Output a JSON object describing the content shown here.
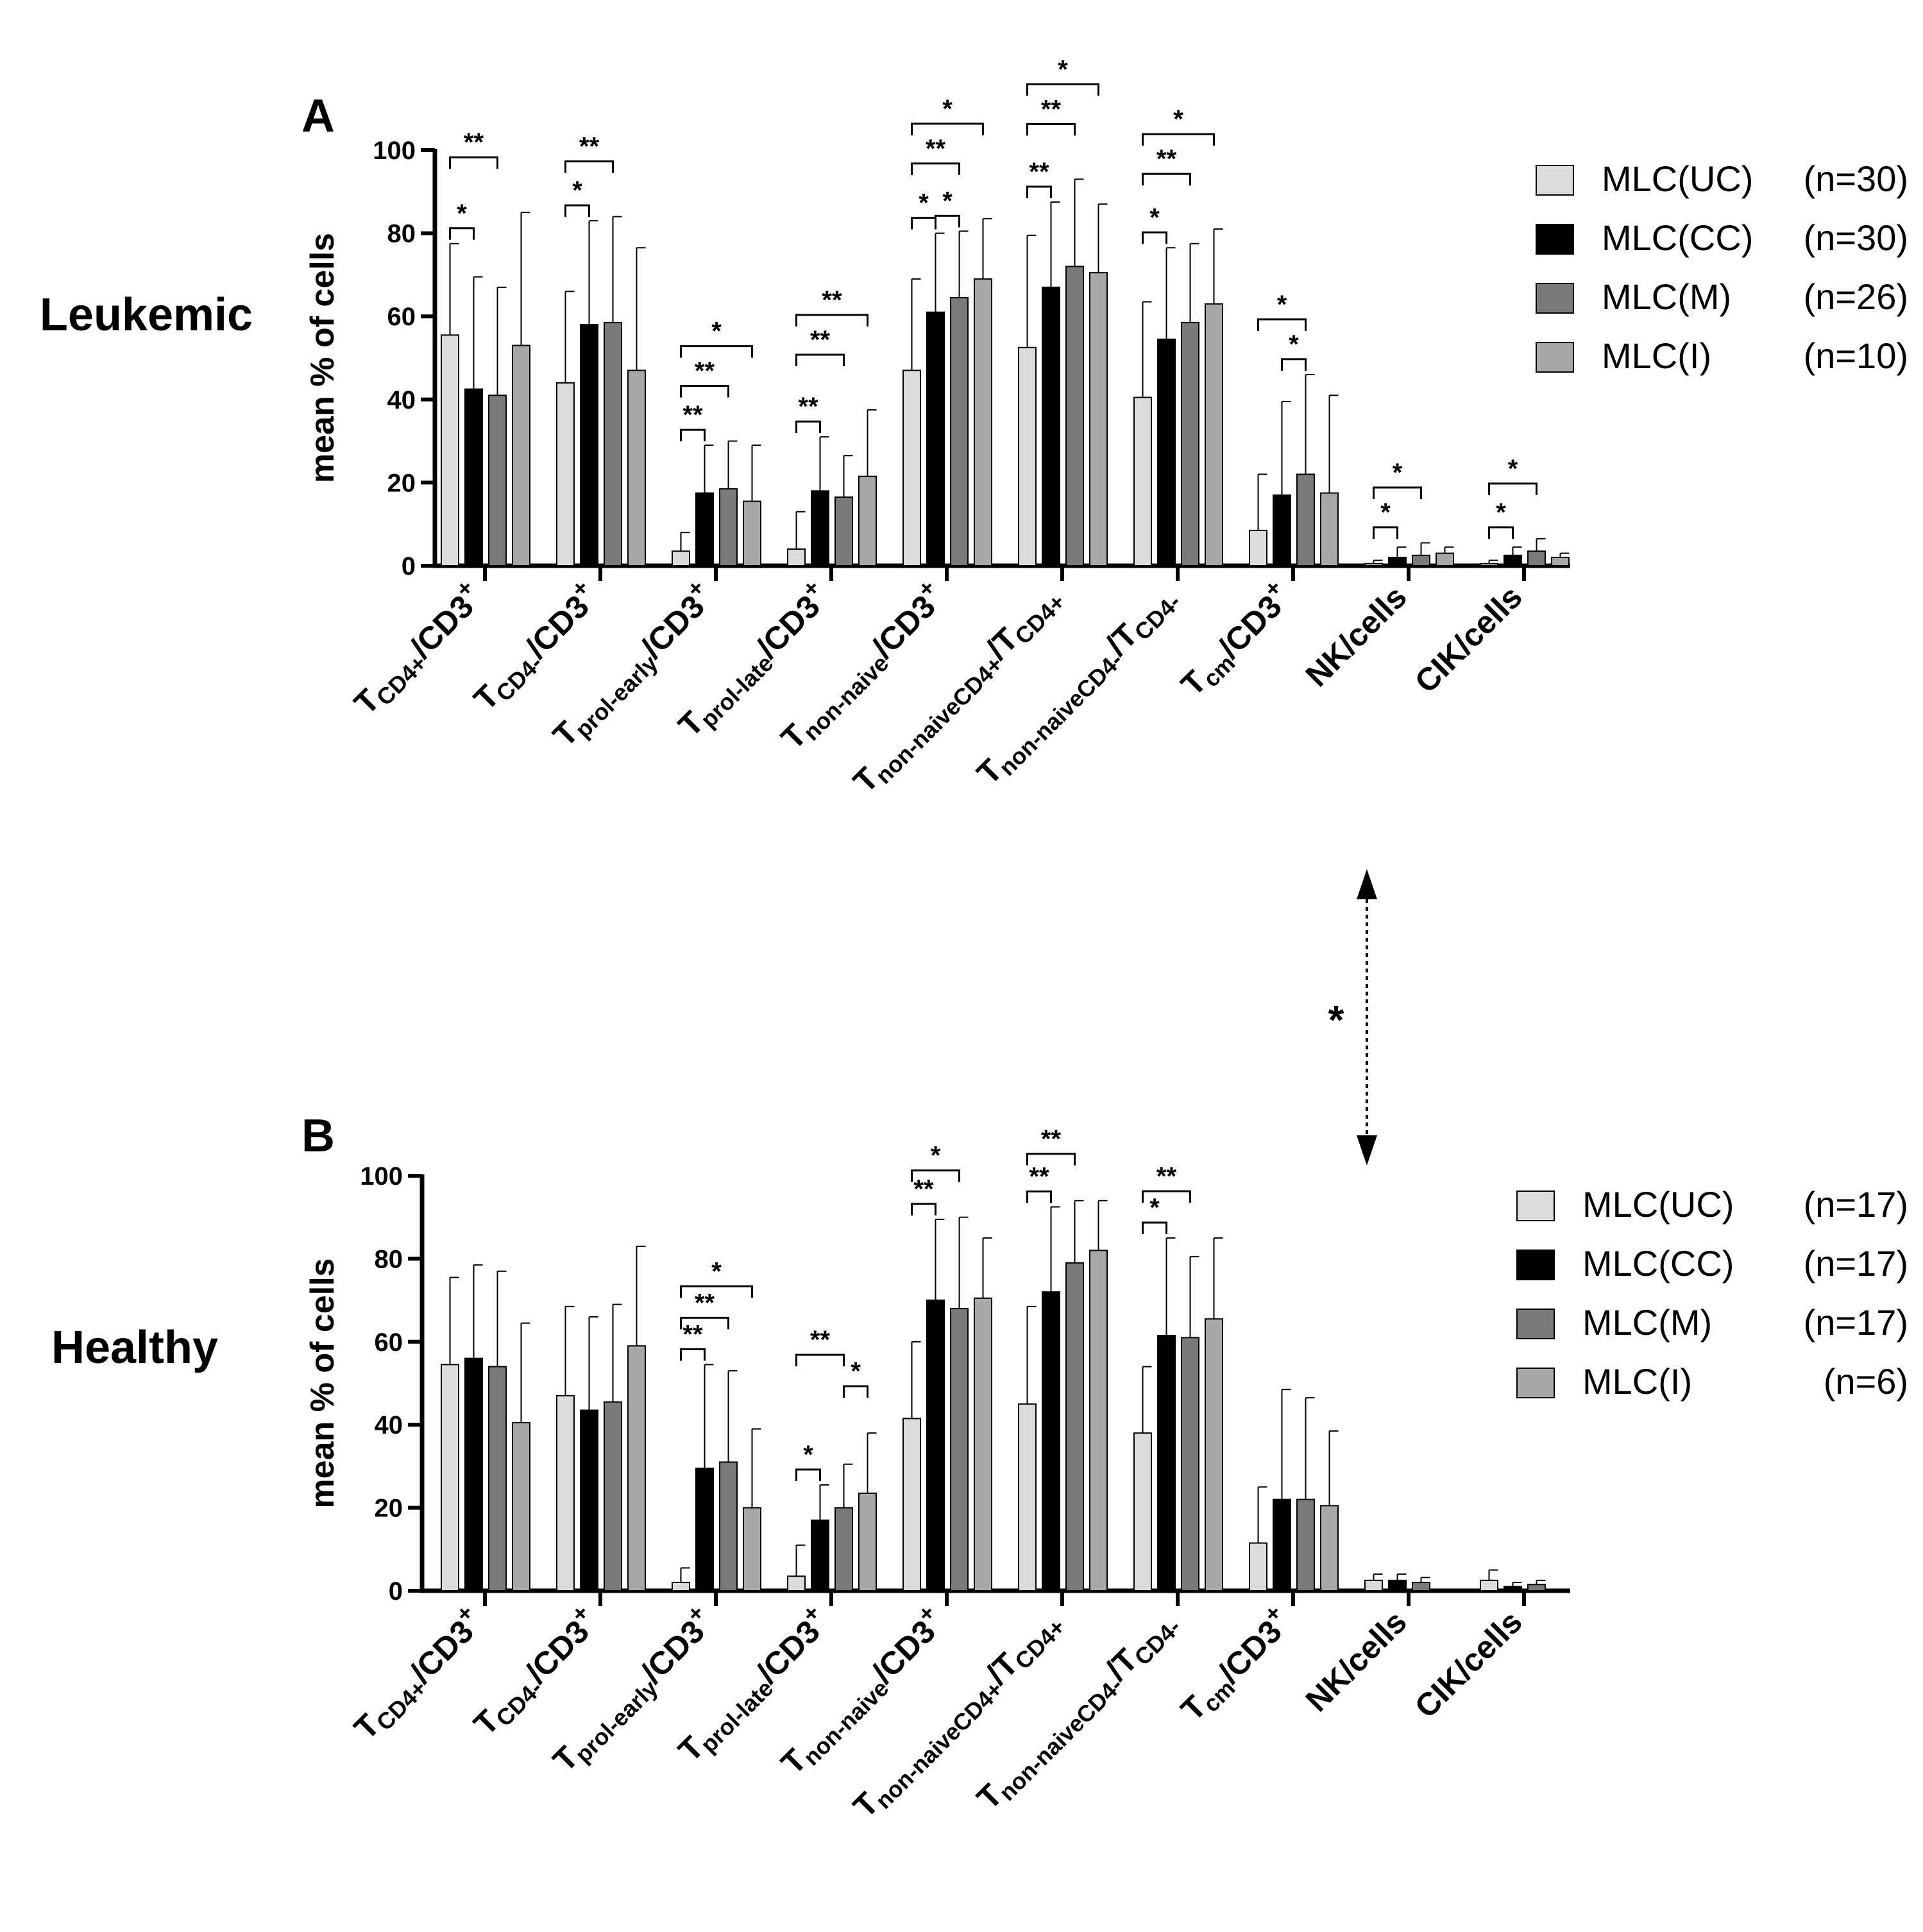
{
  "colors": {
    "UC": "#dcdcdc",
    "CC": "#000000",
    "M": "#7a7a7a",
    "I": "#a8a8a8",
    "axis": "#000000"
  },
  "between_panels": {
    "significance": "*"
  },
  "chart_data": [
    {
      "panel": "A",
      "title": "Leukemic",
      "type": "bar",
      "ylabel": "mean % of cells",
      "ylim": [
        0,
        100
      ],
      "yticks": [
        0,
        20,
        40,
        60,
        80,
        100
      ],
      "categories": [
        {
          "main": "T",
          "sub": "CD4+",
          "suffix": "/CD3",
          "sup": "+"
        },
        {
          "main": "T",
          "sub": "CD4-",
          "suffix": "/CD3",
          "sup": "+"
        },
        {
          "main": "T",
          "sub": "prol-early",
          "suffix": "/CD3",
          "sup": "+"
        },
        {
          "main": "T",
          "sub": "prol-late",
          "suffix": "/CD3",
          "sup": "+"
        },
        {
          "main": "T",
          "sub": "non-naive",
          "suffix": "/CD3",
          "sup": "+"
        },
        {
          "main": "T",
          "sub": "non-naiveCD4+",
          "suffix": "/T",
          "sub2": "CD4+"
        },
        {
          "main": "T",
          "sub": "non-naiveCD4-",
          "suffix": "/T",
          "sub2": "CD4-"
        },
        {
          "main": "T",
          "sub": "cm",
          "suffix": "/CD3",
          "sup": "+"
        },
        {
          "main": "NK/cells"
        },
        {
          "main": "CIK/cells"
        }
      ],
      "series": [
        {
          "key": "UC",
          "name": "MLC(UC)",
          "n": "(n=30)",
          "values": [
            55.5,
            44,
            3.5,
            4,
            47,
            52.5,
            40.5,
            8.5,
            0.5,
            0.5
          ],
          "errors": [
            22,
            22,
            4.5,
            9,
            22,
            27,
            23,
            13.5,
            0.8,
            0.8
          ]
        },
        {
          "key": "CC",
          "name": "MLC(CC)",
          "n": "(n=30)",
          "values": [
            42.5,
            58,
            17.5,
            18,
            61,
            67,
            54.5,
            17,
            2,
            2.5
          ],
          "errors": [
            27,
            25,
            11.5,
            13,
            19,
            20.5,
            22,
            22.5,
            2.5,
            2
          ]
        },
        {
          "key": "M",
          "name": "MLC(M)",
          "n": "(n=26)",
          "values": [
            41,
            58.5,
            18.5,
            16.5,
            64.5,
            72,
            58.5,
            22,
            2.5,
            3.5
          ],
          "errors": [
            26,
            25.5,
            11.5,
            10,
            16,
            21,
            19,
            24,
            3,
            3
          ]
        },
        {
          "key": "I",
          "name": "MLC(I)",
          "n": "(n=10)",
          "values": [
            53,
            47,
            15.5,
            21.5,
            69,
            70.5,
            63,
            17.5,
            3,
            2
          ],
          "errors": [
            32,
            29.5,
            13.5,
            16,
            14.5,
            16.5,
            18,
            23.5,
            1.5,
            1
          ]
        }
      ],
      "significance": [
        {
          "cat": 0,
          "from": "UC",
          "to": "CC",
          "level": 0,
          "label": "*"
        },
        {
          "cat": 0,
          "from": "UC",
          "to": "M",
          "level": 1,
          "label": "**"
        },
        {
          "cat": 1,
          "from": "UC",
          "to": "CC",
          "level": 0,
          "label": "*"
        },
        {
          "cat": 1,
          "from": "UC",
          "to": "M",
          "level": 1,
          "label": "**"
        },
        {
          "cat": 2,
          "from": "UC",
          "to": "CC",
          "level": 0,
          "label": "**"
        },
        {
          "cat": 2,
          "from": "UC",
          "to": "M",
          "level": 1,
          "label": "**"
        },
        {
          "cat": 2,
          "from": "UC",
          "to": "I",
          "level": 2,
          "label": "*"
        },
        {
          "cat": 3,
          "from": "UC",
          "to": "CC",
          "level": 0,
          "label": "**"
        },
        {
          "cat": 3,
          "from": "UC",
          "to": "M",
          "level": 1,
          "label": "**"
        },
        {
          "cat": 3,
          "from": "UC",
          "to": "I",
          "level": 2,
          "label": "**"
        },
        {
          "cat": 4,
          "from": "UC",
          "to": "CC",
          "level": 0,
          "label": "*"
        },
        {
          "cat": 4,
          "from": "CC",
          "to": "M",
          "level": 0,
          "label": "*"
        },
        {
          "cat": 4,
          "from": "UC",
          "to": "M",
          "level": 1,
          "label": "**"
        },
        {
          "cat": 4,
          "from": "UC",
          "to": "I",
          "level": 2,
          "label": "*"
        },
        {
          "cat": 5,
          "from": "UC",
          "to": "CC",
          "level": 0,
          "label": "**"
        },
        {
          "cat": 5,
          "from": "UC",
          "to": "M",
          "level": 1,
          "label": "**"
        },
        {
          "cat": 5,
          "from": "UC",
          "to": "I",
          "level": 2,
          "label": "*"
        },
        {
          "cat": 6,
          "from": "UC",
          "to": "CC",
          "level": 0,
          "label": "*"
        },
        {
          "cat": 6,
          "from": "UC",
          "to": "M",
          "level": 1,
          "label": "**"
        },
        {
          "cat": 6,
          "from": "UC",
          "to": "I",
          "level": 2,
          "label": "*"
        },
        {
          "cat": 7,
          "from": "CC",
          "to": "M",
          "level": 0,
          "label": "*"
        },
        {
          "cat": 7,
          "from": "UC",
          "to": "M",
          "level": 1,
          "label": "*"
        },
        {
          "cat": 8,
          "from": "UC",
          "to": "CC",
          "level": 0,
          "label": "*"
        },
        {
          "cat": 8,
          "from": "UC",
          "to": "M",
          "level": 1,
          "label": "*"
        },
        {
          "cat": 9,
          "from": "UC",
          "to": "CC",
          "level": 0,
          "label": "*"
        },
        {
          "cat": 9,
          "from": "UC",
          "to": "M",
          "level": 1,
          "label": "*"
        }
      ]
    },
    {
      "panel": "B",
      "title": "Healthy",
      "type": "bar",
      "ylabel": "mean % of cells",
      "ylim": [
        0,
        100
      ],
      "yticks": [
        0,
        20,
        40,
        60,
        80,
        100
      ],
      "categories": [
        {
          "main": "T",
          "sub": "CD4+",
          "suffix": "/CD3",
          "sup": "+"
        },
        {
          "main": "T",
          "sub": "CD4-",
          "suffix": "/CD3",
          "sup": "+"
        },
        {
          "main": "T",
          "sub": "prol-early",
          "suffix": "/CD3",
          "sup": "+"
        },
        {
          "main": "T",
          "sub": "prol-late",
          "suffix": "/CD3",
          "sup": "+"
        },
        {
          "main": "T",
          "sub": "non-naive",
          "suffix": "/CD3",
          "sup": "+"
        },
        {
          "main": "T",
          "sub": "non-naiveCD4+",
          "suffix": "/T",
          "sub2": "CD4+"
        },
        {
          "main": "T",
          "sub": "non-naiveCD4-",
          "suffix": "/T",
          "sub2": "CD4-"
        },
        {
          "main": "T",
          "sub": "cm",
          "suffix": "/CD3",
          "sup": "+"
        },
        {
          "main": "NK/cells"
        },
        {
          "main": "CIK/cells"
        }
      ],
      "series": [
        {
          "key": "UC",
          "name": "MLC(UC)",
          "n": "(n=17)",
          "values": [
            54.5,
            47,
            2,
            3.5,
            41.5,
            45,
            38,
            11.5,
            2.5,
            2.5
          ],
          "errors": [
            21,
            21.5,
            3.5,
            7.5,
            18.5,
            23.5,
            16,
            13.5,
            1.5,
            2.5
          ]
        },
        {
          "key": "CC",
          "name": "MLC(CC)",
          "n": "(n=17)",
          "values": [
            56,
            43.5,
            29.5,
            17,
            70,
            72,
            61.5,
            22,
            2.5,
            1
          ],
          "errors": [
            22.5,
            22.5,
            25,
            8.5,
            19.5,
            20.5,
            23.5,
            26.5,
            1.5,
            1
          ]
        },
        {
          "key": "M",
          "name": "MLC(M)",
          "n": "(n=17)",
          "values": [
            54,
            45.5,
            31,
            20,
            68,
            79,
            61,
            22,
            2,
            1.5
          ],
          "errors": [
            23,
            23.5,
            22,
            10.5,
            22,
            15,
            19.5,
            24.5,
            1.2,
            1
          ]
        },
        {
          "key": "I",
          "name": "MLC(I)",
          "n": "(n=6)",
          "values": [
            40.5,
            59,
            20,
            23.5,
            70.5,
            82,
            65.5,
            20.5,
            0,
            0
          ],
          "errors": [
            24,
            24,
            19,
            14.5,
            14.5,
            12,
            19.5,
            18,
            0,
            0
          ]
        }
      ],
      "significance": [
        {
          "cat": 2,
          "from": "UC",
          "to": "CC",
          "level": 0,
          "label": "**"
        },
        {
          "cat": 2,
          "from": "UC",
          "to": "M",
          "level": 1,
          "label": "**"
        },
        {
          "cat": 2,
          "from": "UC",
          "to": "I",
          "level": 2,
          "label": "*"
        },
        {
          "cat": 3,
          "from": "UC",
          "to": "CC",
          "level": 0,
          "label": "*"
        },
        {
          "cat": 3,
          "from": "M",
          "to": "I",
          "level": 1,
          "label": "*"
        },
        {
          "cat": 3,
          "from": "UC",
          "to": "M",
          "level": 2,
          "label": "**"
        },
        {
          "cat": 4,
          "from": "UC",
          "to": "CC",
          "level": 0,
          "label": "**"
        },
        {
          "cat": 4,
          "from": "UC",
          "to": "M",
          "level": 1,
          "label": "*"
        },
        {
          "cat": 5,
          "from": "UC",
          "to": "CC",
          "level": 0,
          "label": "**"
        },
        {
          "cat": 5,
          "from": "UC",
          "to": "M",
          "level": 1,
          "label": "**"
        },
        {
          "cat": 6,
          "from": "UC",
          "to": "CC",
          "level": 0,
          "label": "*"
        },
        {
          "cat": 6,
          "from": "UC",
          "to": "M",
          "level": 1,
          "label": "**"
        }
      ]
    }
  ]
}
